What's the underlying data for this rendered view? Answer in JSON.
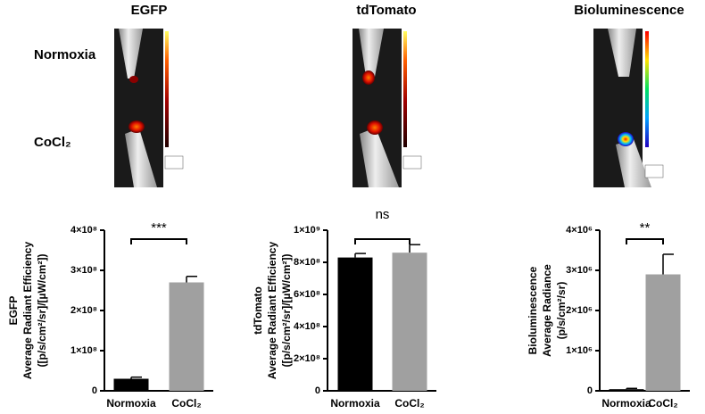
{
  "image_panels": {
    "titles": [
      "EGFP",
      "tdTomato",
      "Bioluminescence"
    ],
    "row_labels": [
      "Normoxia",
      "CoCl₂"
    ]
  },
  "chart_data": [
    {
      "type": "bar",
      "y_label": [
        "EGFP",
        "Average Radiant Efficiency",
        "([p/s/cm²/sr]/[µW/cm²])"
      ],
      "categories": [
        "Normoxia",
        "CoCl₂"
      ],
      "values": [
        30000000,
        270000000
      ],
      "errors": [
        4000000,
        15000000
      ],
      "colors": [
        "#000000",
        "#a0a0a0"
      ],
      "significance": "***",
      "ylim": [
        0,
        400000000
      ],
      "yticks": [
        0,
        {
          "value": 100000000,
          "label": "1×10⁸"
        },
        {
          "value": 200000000,
          "label": "2×10⁸"
        },
        {
          "value": 300000000,
          "label": "3×10⁸"
        },
        {
          "value": 400000000,
          "label": "4×10⁸"
        }
      ]
    },
    {
      "type": "bar",
      "y_label": [
        "tdTomato",
        "Average Radiant Efficiency",
        "([p/s/cm²/sr]/[µW/cm²])"
      ],
      "categories": [
        "Normoxia",
        "CoCl₂"
      ],
      "values": [
        830000000,
        860000000
      ],
      "errors": [
        25000000,
        50000000
      ],
      "colors": [
        "#000000",
        "#a0a0a0"
      ],
      "significance": "ns",
      "ylim": [
        0,
        1000000000
      ],
      "yticks": [
        0,
        {
          "value": 200000000,
          "label": "2×10⁸"
        },
        {
          "value": 400000000,
          "label": "4×10⁸"
        },
        {
          "value": 600000000,
          "label": "6×10⁸"
        },
        {
          "value": 800000000,
          "label": "8×10⁸"
        },
        {
          "value": 1000000000,
          "label": "1×10⁹"
        }
      ]
    },
    {
      "type": "bar",
      "y_label": [
        "Bioluminescence",
        "Average Radiance",
        "(p/s/cm²/sr)"
      ],
      "categories": [
        "Normoxia",
        "CoCl₂"
      ],
      "values": [
        40000,
        2900000
      ],
      "errors": [
        20000,
        500000
      ],
      "colors": [
        "#000000",
        "#a0a0a0"
      ],
      "significance": "**",
      "ylim": [
        0,
        4000000
      ],
      "yticks": [
        0,
        {
          "value": 1000000,
          "label": "1×10⁶"
        },
        {
          "value": 2000000,
          "label": "2×10⁶"
        },
        {
          "value": 3000000,
          "label": "3×10⁶"
        },
        {
          "value": 4000000,
          "label": "4×10⁶"
        }
      ]
    }
  ]
}
